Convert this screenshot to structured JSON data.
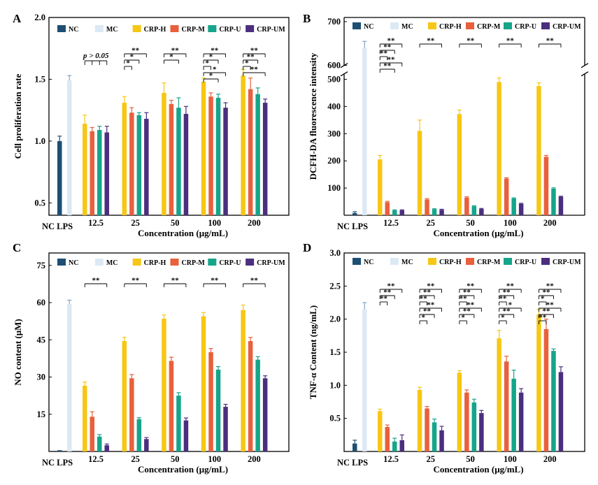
{
  "colors": {
    "NC": "#1d4f73",
    "MC": "#dce9f4",
    "CRP-H": "#f6c714",
    "CRP-M": "#e8603c",
    "CRP-U": "#15a58a",
    "CRP-UM": "#4b2e7e"
  },
  "chart_data": [
    {
      "panel": "A",
      "type": "bar",
      "ylabel": "Cell proliferation rate",
      "xlabel": "Concentration (μg/mL)",
      "ylim": [
        0.4,
        2.0
      ],
      "yticks": [
        "0.5",
        "1.0",
        "1.5",
        "2.0"
      ],
      "control_labels": [
        "NC",
        "LPS"
      ],
      "categories": [
        "12.5",
        "25",
        "50",
        "100",
        "200"
      ],
      "legend": [
        "NC",
        "MC",
        "CRP-H",
        "CRP-M",
        "CRP-U",
        "CRP-UM"
      ],
      "controls": [
        {
          "name": "NC",
          "value": 1.0,
          "err": 0.04
        },
        {
          "name": "MC",
          "value": 1.49,
          "err": 0.04
        }
      ],
      "series": [
        {
          "name": "CRP-H",
          "values": [
            1.14,
            1.31,
            1.39,
            1.48,
            1.53
          ],
          "err": [
            0.07,
            0.05,
            0.08,
            0.03,
            0.05
          ]
        },
        {
          "name": "CRP-M",
          "values": [
            1.08,
            1.23,
            1.3,
            1.36,
            1.42
          ],
          "err": [
            0.03,
            0.04,
            0.03,
            0.03,
            0.09
          ]
        },
        {
          "name": "CRP-U",
          "values": [
            1.09,
            1.21,
            1.27,
            1.35,
            1.38
          ],
          "err": [
            0.03,
            0.02,
            0.08,
            0.03,
            0.05
          ]
        },
        {
          "name": "CRP-UM",
          "values": [
            1.07,
            1.18,
            1.22,
            1.27,
            1.31
          ],
          "err": [
            0.05,
            0.05,
            0.06,
            0.04,
            0.03
          ]
        }
      ],
      "annotation": "p > 0.05",
      "significance": [
        [
          "p > 0.05"
        ],
        [
          "**",
          "*",
          "*"
        ],
        [
          "**",
          "*"
        ],
        [
          "**",
          "*",
          "*",
          "*",
          "*"
        ],
        [
          "**",
          "**",
          "*",
          "**"
        ]
      ]
    },
    {
      "panel": "B",
      "type": "bar",
      "ylabel": "DCFH-DA fluorescence intensity",
      "xlabel": "Concentration (μg/mL)",
      "ylim": [
        0,
        700
      ],
      "axis_break": [
        520,
        600
      ],
      "yticks": [
        "100",
        "200",
        "300",
        "400",
        "500",
        "600",
        "700"
      ],
      "control_labels": [
        "NC",
        "LPS"
      ],
      "categories": [
        "12.5",
        "25",
        "50",
        "100",
        "200"
      ],
      "legend": [
        "NC",
        "MC",
        "CRP-H",
        "CRP-M",
        "CRP-U",
        "CRP-UM"
      ],
      "controls": [
        {
          "name": "NC",
          "value": 8,
          "err": 5
        },
        {
          "name": "MC",
          "value": 640,
          "err": 15
        }
      ],
      "series": [
        {
          "name": "CRP-H",
          "values": [
            205,
            310,
            372,
            490,
            475
          ],
          "err": [
            15,
            40,
            15,
            15,
            12
          ]
        },
        {
          "name": "CRP-M",
          "values": [
            48,
            58,
            65,
            135,
            215
          ],
          "err": [
            3,
            3,
            3,
            3,
            5
          ]
        },
        {
          "name": "CRP-U",
          "values": [
            18,
            22,
            33,
            62,
            98
          ],
          "err": [
            2,
            2,
            2,
            2,
            3
          ]
        },
        {
          "name": "CRP-UM",
          "values": [
            18,
            20,
            23,
            42,
            68
          ],
          "err": [
            2,
            2,
            2,
            2,
            2
          ]
        }
      ],
      "significance": [
        [
          "**",
          "**",
          "**",
          "**",
          "**"
        ],
        [
          "**"
        ],
        [
          "**"
        ],
        [
          "**"
        ],
        [
          "**"
        ]
      ]
    },
    {
      "panel": "C",
      "type": "bar",
      "ylabel": "NO content (μM)",
      "xlabel": "Concentration (μg/mL)",
      "ylim": [
        0,
        80
      ],
      "yticks": [
        "15",
        "30",
        "45",
        "60",
        "75"
      ],
      "control_labels": [
        "NC",
        "LPS"
      ],
      "categories": [
        "12.5",
        "25",
        "50",
        "100",
        "200"
      ],
      "legend": [
        "NC",
        "MC",
        "CRP-H",
        "CRP-M",
        "CRP-U",
        "CRP-UM"
      ],
      "controls": [
        {
          "name": "NC",
          "value": 0.5,
          "err": 0
        },
        {
          "name": "MC",
          "value": 59.5,
          "err": 1.5
        }
      ],
      "series": [
        {
          "name": "CRP-H",
          "values": [
            26.5,
            44.5,
            53.5,
            54.5,
            57.0
          ],
          "err": [
            1.5,
            1.5,
            1.5,
            1.5,
            2.0
          ]
        },
        {
          "name": "CRP-M",
          "values": [
            14.0,
            29.5,
            36.5,
            40.0,
            44.5
          ],
          "err": [
            2.0,
            1.5,
            1.5,
            1.5,
            1.5
          ]
        },
        {
          "name": "CRP-U",
          "values": [
            6.0,
            13.0,
            22.5,
            33.0,
            37.0
          ],
          "err": [
            0.8,
            0.6,
            1.2,
            1.2,
            1.2
          ]
        },
        {
          "name": "CRP-UM",
          "values": [
            2.5,
            5.0,
            12.5,
            18.0,
            29.5
          ],
          "err": [
            0.5,
            0.6,
            1.0,
            1.0,
            1.0
          ]
        }
      ],
      "significance": [
        [
          "**"
        ],
        [
          "**"
        ],
        [
          "**"
        ],
        [
          "**"
        ],
        [
          "**"
        ]
      ]
    },
    {
      "panel": "D",
      "type": "bar",
      "ylabel": "TNF-α Content (ng/mL)",
      "xlabel": "Concentration (μg/mL)",
      "ylim": [
        0,
        3.0
      ],
      "yticks": [
        "0.5",
        "1.0",
        "1.5",
        "2.0",
        "2.5",
        "3.0"
      ],
      "control_labels": [
        "NC",
        "LPS"
      ],
      "categories": [
        "12.5",
        "25",
        "50",
        "100",
        "200"
      ],
      "legend": [
        "NC",
        "MC",
        "CRP-H",
        "CRP-M",
        "CRP-U",
        "CRP-UM"
      ],
      "controls": [
        {
          "name": "NC",
          "value": 0.12,
          "err": 0.05
        },
        {
          "name": "MC",
          "value": 2.15,
          "err": 0.1
        }
      ],
      "series": [
        {
          "name": "CRP-H",
          "values": [
            0.61,
            0.93,
            1.19,
            1.71,
            2.07
          ],
          "err": [
            0.03,
            0.04,
            0.03,
            0.12,
            0.08
          ]
        },
        {
          "name": "CRP-M",
          "values": [
            0.37,
            0.65,
            0.89,
            1.36,
            1.85
          ],
          "err": [
            0.03,
            0.03,
            0.04,
            0.08,
            0.15
          ]
        },
        {
          "name": "CRP-U",
          "values": [
            0.15,
            0.44,
            0.74,
            1.1,
            1.52
          ],
          "err": [
            0.05,
            0.05,
            0.05,
            0.13,
            0.03
          ]
        },
        {
          "name": "CRP-UM",
          "values": [
            0.17,
            0.32,
            0.58,
            0.89,
            1.2
          ],
          "err": [
            0.08,
            0.06,
            0.04,
            0.06,
            0.08
          ]
        }
      ],
      "significance": [
        [
          "**",
          "**",
          "**"
        ],
        [
          "**",
          "**",
          "**",
          "**",
          "**",
          "*"
        ],
        [
          "**",
          "**",
          "**",
          "**",
          "**",
          "*"
        ],
        [
          "**",
          "**",
          "**",
          "*",
          "**",
          "*"
        ],
        [
          "**",
          "**",
          "*",
          "**",
          "**",
          "**"
        ]
      ]
    }
  ]
}
